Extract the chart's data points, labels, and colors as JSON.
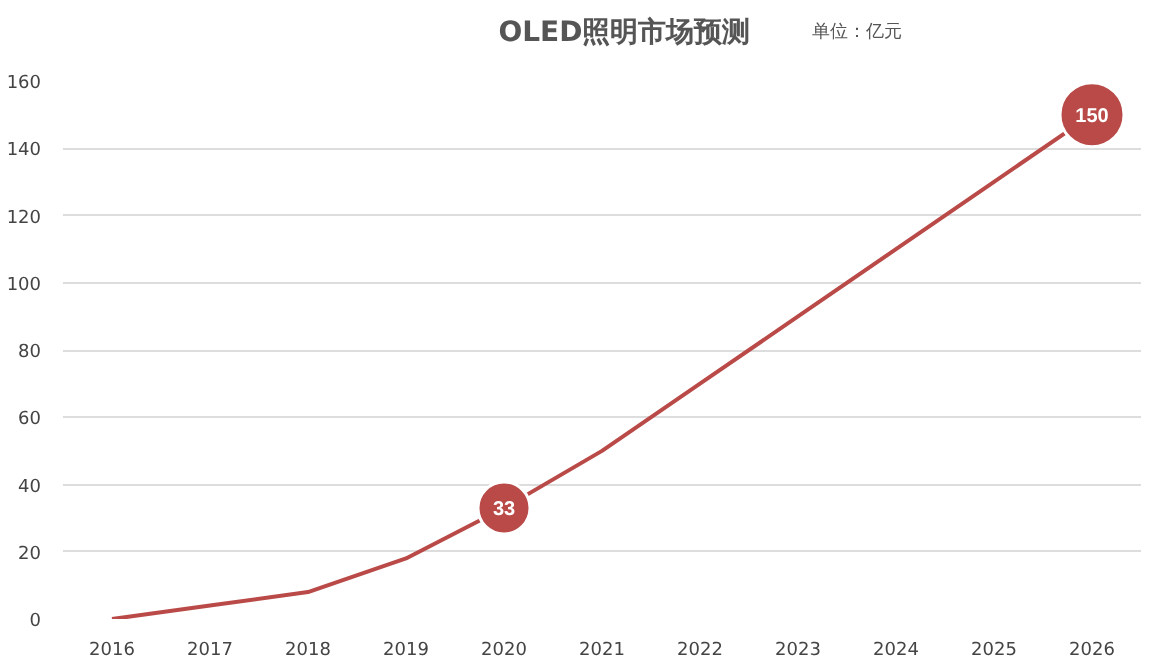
{
  "chart_data": {
    "type": "line",
    "title": "OLED照明市场预测",
    "subtitle": "单位：亿元",
    "categories": [
      "2016",
      "2017",
      "2018",
      "2019",
      "2020",
      "2021",
      "2022",
      "2023",
      "2024",
      "2025",
      "2026"
    ],
    "series": [
      {
        "color": "#b94a48",
        "values": [
          0,
          4,
          8,
          18,
          33,
          50,
          70,
          90,
          110,
          130,
          150
        ],
        "value_labels": [
          null,
          null,
          null,
          null,
          "33",
          null,
          null,
          null,
          null,
          null,
          "150"
        ]
      }
    ],
    "ylim": [
      0,
      160
    ],
    "yticks": [
      0,
      20,
      40,
      60,
      80,
      100,
      120,
      140,
      160
    ],
    "grid": "y",
    "marker": "none",
    "line_style": "solid"
  }
}
